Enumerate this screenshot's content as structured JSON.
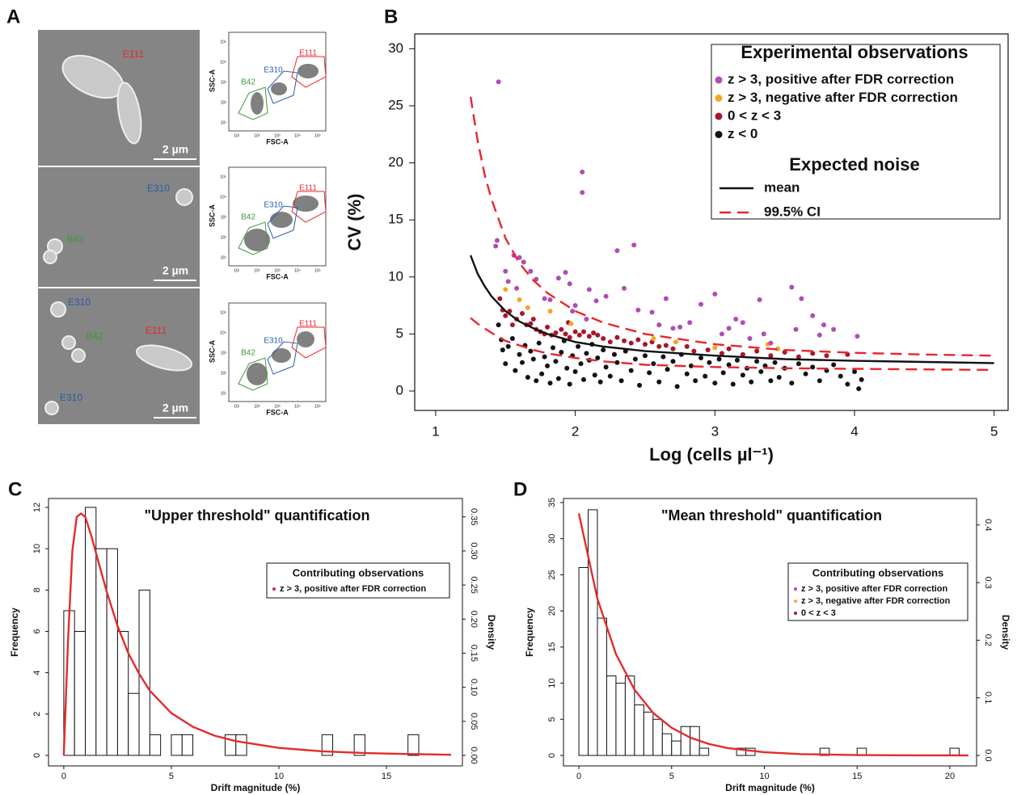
{
  "panel_a": {
    "label": "A",
    "micrographs": [
      {
        "labels": [
          {
            "text": "E111",
            "color": "#e8262b"
          }
        ],
        "scale_bar": "2 µm"
      },
      {
        "labels": [
          {
            "text": "E310",
            "color": "#2a5ca8"
          },
          {
            "text": "B42",
            "color": "#3a9a3a"
          }
        ],
        "scale_bar": "2 µm"
      },
      {
        "labels": [
          {
            "text": "E310",
            "color": "#2a5ca8"
          },
          {
            "text": "B42",
            "color": "#3a9a3a"
          },
          {
            "text": "E111",
            "color": "#e8262b"
          },
          {
            "text": "E310",
            "color": "#2a5ca8"
          }
        ],
        "scale_bar": "2 µm"
      }
    ],
    "flow_plots": [
      {
        "x_label": "FSC-A",
        "y_label": "SSC-A",
        "ticks": [
          "10¹",
          "10²",
          "10³",
          "10⁴",
          "10⁵"
        ],
        "gates": [
          {
            "text": "B42",
            "color": "#3a9a3a"
          },
          {
            "text": "E310",
            "color": "#2a5ca8"
          },
          {
            "text": "E111",
            "color": "#e8262b"
          }
        ]
      },
      {
        "x_label": "FSC-A",
        "y_label": "SSC-A",
        "ticks": [
          "10¹",
          "10²",
          "10³",
          "10⁴",
          "10⁵"
        ],
        "gates": [
          {
            "text": "B42",
            "color": "#3a9a3a"
          },
          {
            "text": "E310",
            "color": "#2a5ca8"
          },
          {
            "text": "E111",
            "color": "#e8262b"
          }
        ]
      },
      {
        "x_label": "FSC-A",
        "y_label": "SSC-A",
        "ticks": [
          "10¹",
          "10²",
          "10³",
          "10⁴",
          "10⁵"
        ],
        "gates": [
          {
            "text": "B42",
            "color": "#3a9a3a"
          },
          {
            "text": "E310",
            "color": "#2a5ca8"
          },
          {
            "text": "E111",
            "color": "#e8262b"
          }
        ]
      }
    ]
  },
  "chart_data": [
    {
      "type": "scatter",
      "panel_label": "B",
      "x_label": "Log (cells µl⁻¹)",
      "y_label": "CV (%)",
      "xlim": [
        0.85,
        5.1
      ],
      "ylim": [
        -1.7,
        31.3
      ],
      "xticks": [
        1,
        2,
        3,
        4,
        5
      ],
      "yticks": [
        0,
        5,
        10,
        15,
        20,
        25,
        30
      ],
      "grid": false,
      "legend": "top-right",
      "legend_title": "Experimental observations",
      "lines_title": "Expected noise",
      "series": [
        {
          "name": "z > 3, positive after FDR correction",
          "color": "#b04bb7",
          "x": [
            1.45,
            1.44,
            1.43,
            1.5,
            1.56,
            1.6,
            1.63,
            1.52,
            1.58,
            1.68,
            1.72,
            1.78,
            1.82,
            1.88,
            1.93,
            1.96,
            2.05,
            2.05,
            2.0,
            2.1,
            2.15,
            2.22,
            2.3,
            2.42,
            2.35,
            2.45,
            2.55,
            2.6,
            2.7,
            2.75,
            2.82,
            2.65,
            2.9,
            3.05,
            3.1,
            3.15,
            3.2,
            3.25,
            3.32,
            3.35,
            3.4,
            3.55,
            3.58,
            3.62,
            3.7,
            3.75,
            3.78,
            3.85,
            4.02,
            1.98,
            2.08,
            3.0
          ],
          "values": [
            27.1,
            13.2,
            12.7,
            10.5,
            11.9,
            11.7,
            11.3,
            9.6,
            9.0,
            10.5,
            9.8,
            8.1,
            8.0,
            9.9,
            10.4,
            9.4,
            19.2,
            17.4,
            7.5,
            8.9,
            7.9,
            8.3,
            12.3,
            12.8,
            9.0,
            7.1,
            6.9,
            5.8,
            5.5,
            5.6,
            6.0,
            8.1,
            7.6,
            5.0,
            5.5,
            6.3,
            6.0,
            4.6,
            8.0,
            5.0,
            4.2,
            9.1,
            5.4,
            8.1,
            6.6,
            4.9,
            5.8,
            5.4,
            4.8,
            7.0,
            6.3,
            8.5
          ]
        },
        {
          "name": "z > 3, negative after FDR correction",
          "color": "#f5a623",
          "x": [
            1.5,
            1.6,
            1.66,
            1.82,
            1.97,
            2.56,
            2.72,
            3.0,
            3.38,
            3.45
          ],
          "values": [
            8.9,
            8.0,
            7.3,
            7.0,
            5.9,
            4.6,
            4.3,
            3.8,
            4.1,
            3.7
          ]
        },
        {
          "name": "0 < z < 3",
          "color": "#a8162a",
          "x": [
            1.46,
            1.48,
            1.5,
            1.53,
            1.55,
            1.58,
            1.62,
            1.65,
            1.68,
            1.7,
            1.72,
            1.75,
            1.78,
            1.8,
            1.83,
            1.86,
            1.9,
            1.93,
            1.96,
            2.0,
            2.03,
            2.06,
            2.1,
            2.13,
            2.16,
            2.2,
            2.25,
            2.3,
            2.35,
            2.4,
            2.45,
            2.5,
            2.55,
            2.6,
            2.65,
            2.7,
            2.8,
            2.85,
            2.95,
            3.05,
            3.1,
            3.2,
            3.3,
            3.4,
            3.5,
            3.6,
            3.7,
            3.8,
            3.95,
            1.95
          ],
          "values": [
            8.1,
            7.1,
            6.6,
            7.0,
            5.8,
            6.3,
            6.8,
            5.8,
            5.9,
            6.3,
            5.4,
            5.2,
            5.0,
            5.6,
            4.9,
            5.1,
            5.4,
            5.0,
            4.7,
            5.2,
            4.9,
            5.2,
            4.8,
            5.1,
            4.9,
            4.6,
            4.3,
            4.7,
            4.4,
            4.2,
            4.5,
            4.1,
            4.3,
            3.9,
            4.0,
            3.7,
            3.9,
            3.5,
            3.6,
            3.3,
            3.7,
            3.2,
            3.5,
            3.1,
            3.4,
            3.0,
            3.3,
            3.1,
            3.2,
            6.0
          ]
        },
        {
          "name": "z < 0",
          "color": "#111111",
          "x": [
            1.45,
            1.47,
            1.48,
            1.5,
            1.52,
            1.55,
            1.57,
            1.6,
            1.62,
            1.64,
            1.66,
            1.68,
            1.7,
            1.72,
            1.74,
            1.76,
            1.78,
            1.8,
            1.82,
            1.84,
            1.86,
            1.88,
            1.9,
            1.92,
            1.94,
            1.96,
            1.98,
            2.0,
            2.02,
            2.04,
            2.06,
            2.08,
            2.1,
            2.12,
            2.14,
            2.16,
            2.18,
            2.2,
            2.22,
            2.25,
            2.28,
            2.3,
            2.33,
            2.36,
            2.4,
            2.43,
            2.46,
            2.5,
            2.53,
            2.56,
            2.6,
            2.63,
            2.66,
            2.7,
            2.73,
            2.76,
            2.8,
            2.83,
            2.86,
            2.9,
            2.93,
            2.96,
            3.0,
            3.03,
            3.06,
            3.1,
            3.13,
            3.16,
            3.2,
            3.23,
            3.26,
            3.3,
            3.33,
            3.36,
            3.4,
            3.43,
            3.46,
            3.5,
            3.55,
            3.6,
            3.65,
            3.7,
            3.75,
            3.8,
            3.85,
            3.9,
            3.95,
            4.0,
            4.03,
            4.05
          ],
          "values": [
            5.8,
            4.5,
            3.6,
            2.4,
            3.9,
            4.6,
            1.8,
            3.2,
            2.5,
            4.0,
            1.2,
            3.5,
            2.8,
            0.9,
            4.2,
            1.5,
            3.0,
            2.2,
            0.7,
            3.8,
            2.6,
            1.1,
            3.4,
            4.4,
            2.0,
            0.6,
            3.1,
            1.7,
            3.9,
            2.4,
            1.0,
            3.3,
            2.7,
            4.1,
            1.4,
            2.9,
            0.8,
            3.6,
            2.1,
            1.3,
            3.2,
            2.5,
            0.9,
            3.5,
            1.8,
            2.8,
            0.5,
            3.1,
            1.6,
            2.4,
            0.8,
            3.0,
            1.9,
            2.6,
            0.4,
            3.2,
            1.5,
            2.2,
            0.9,
            2.9,
            1.3,
            2.5,
            0.7,
            2.8,
            1.6,
            2.3,
            0.6,
            2.7,
            1.4,
            2.0,
            0.8,
            2.6,
            1.7,
            2.2,
            0.9,
            2.5,
            1.2,
            2.0,
            0.7,
            2.4,
            1.5,
            2.1,
            0.9,
            1.8,
            2.3,
            1.3,
            0.6,
            1.7,
            0.2,
            1.0
          ]
        }
      ],
      "lines": [
        {
          "name": "mean",
          "color": "#111111",
          "dashed": false,
          "x": [
            1.25,
            1.3,
            1.35,
            1.4,
            1.5,
            1.6,
            1.7,
            1.8,
            2.0,
            2.2,
            2.5,
            3.0,
            3.5,
            4.0,
            4.5,
            5.0
          ],
          "values": [
            11.9,
            10.3,
            9.2,
            8.3,
            7.0,
            6.1,
            5.5,
            5.0,
            4.3,
            3.9,
            3.5,
            3.1,
            2.8,
            2.65,
            2.55,
            2.45
          ]
        },
        {
          "name": "99.5% CI",
          "color": "#e8262b",
          "dashed": true,
          "x": [
            1.25,
            1.3,
            1.35,
            1.4,
            1.5,
            1.6,
            1.7,
            1.8,
            2.0,
            2.2,
            2.5,
            3.0,
            3.5,
            4.0,
            4.5,
            5.0
          ],
          "upper": [
            25.8,
            22,
            19,
            16.8,
            13.4,
            11.2,
            9.7,
            8.6,
            7.0,
            6.0,
            5.0,
            4.1,
            3.6,
            3.35,
            3.2,
            3.1
          ],
          "lower": [
            6.4,
            5.9,
            5.5,
            5.1,
            4.4,
            4.0,
            3.6,
            3.3,
            2.9,
            2.6,
            2.3,
            2.1,
            2.0,
            1.95,
            1.9,
            1.85
          ]
        }
      ]
    },
    {
      "type": "histogram",
      "panel_label": "C",
      "title": "\"Upper threshold\" quantification",
      "x_label": "Drift magnitude (%)",
      "y_label": "Frequency",
      "y2_label": "Density",
      "bins": [
        0,
        0.5,
        1,
        1.5,
        2,
        2.5,
        3,
        3.5,
        4,
        4.5,
        5,
        5.5,
        6,
        6.5,
        7,
        7.5,
        8,
        8.5,
        9,
        9.5,
        10,
        10.5,
        11,
        11.5,
        12,
        12.5,
        13,
        13.5,
        14,
        14.5,
        15,
        15.5,
        16,
        16.5
      ],
      "values": [
        7,
        6,
        12,
        10,
        10,
        6,
        3,
        8,
        1,
        0,
        1,
        1,
        0,
        0,
        0,
        1,
        1,
        0,
        0,
        0,
        0,
        0,
        0,
        0,
        1,
        0,
        0,
        1,
        0,
        0,
        0,
        0,
        1
      ],
      "bar_color": "#ffffff",
      "xlim": [
        -0.71,
        18.53
      ],
      "ylim": [
        -0.51,
        12.43
      ],
      "y2lim": [
        -0.0154,
        0.377
      ],
      "xticks": [
        0,
        5,
        10,
        15
      ],
      "yticks": [
        0,
        2,
        4,
        6,
        8,
        10,
        12
      ],
      "y2ticks": [
        {
          "value": 0,
          "label": "0.00"
        },
        0.05,
        {
          "value": 0.1,
          "label": "0.10"
        },
        0.15,
        {
          "value": 0.2,
          "label": "0.20"
        },
        0.25,
        {
          "value": 0.3,
          "label": "0.30"
        },
        0.35
      ],
      "series": [
        {
          "color": "#e32b2b",
          "axis": "y2",
          "x": [
            0,
            0.2,
            0.4,
            0.6,
            0.8,
            1,
            1.3,
            1.6,
            2,
            2.5,
            3,
            3.5,
            4,
            5,
            6,
            7,
            8,
            10,
            12,
            14,
            16,
            18
          ],
          "values": [
            0,
            0.17,
            0.3,
            0.35,
            0.355,
            0.35,
            0.32,
            0.285,
            0.24,
            0.19,
            0.15,
            0.12,
            0.095,
            0.062,
            0.042,
            0.029,
            0.021,
            0.011,
            0.006,
            0.0035,
            0.002,
            0.001
          ]
        }
      ],
      "legend_title": "Contributing observations",
      "legend_entries": [
        {
          "label": "z > 3, positive after FDR correction",
          "color": "#c8304a"
        }
      ]
    },
    {
      "type": "histogram",
      "panel_label": "D",
      "title": "\"Mean threshold\" quantification",
      "x_label": "Drift magnitude (%)",
      "y_label": "Frequency",
      "y2_label": "Density",
      "bins": [
        0,
        0.5,
        1,
        1.5,
        2,
        2.5,
        3,
        3.5,
        4,
        4.5,
        5,
        5.5,
        6,
        6.5,
        7,
        7.5,
        8,
        8.5,
        9,
        9.5,
        10,
        10.5,
        11,
        11.5,
        12,
        12.5,
        13,
        13.5,
        14,
        14.5,
        15,
        15.5,
        16,
        16.5,
        17,
        17.5,
        18,
        18.5,
        19,
        19.5,
        20,
        20.5
      ],
      "values": [
        26,
        34,
        19,
        11,
        10,
        11,
        7,
        6,
        5,
        3,
        2,
        4,
        4,
        1,
        0,
        0,
        0,
        1,
        1,
        0,
        0,
        0,
        0,
        0,
        0,
        0,
        1,
        0,
        0,
        0,
        1,
        0,
        0,
        0,
        0,
        0,
        0,
        0,
        0,
        0,
        1
      ],
      "bar_color": "#ffffff",
      "xlim": [
        -0.83,
        21.44
      ],
      "ylim": [
        -1.45,
        35.56
      ],
      "y2lim": [
        -0.0182,
        0.446
      ],
      "xticks": [
        0,
        5,
        10,
        15,
        20
      ],
      "yticks": [
        0,
        5,
        10,
        15,
        20,
        25,
        30,
        35
      ],
      "y2ticks": [
        {
          "value": 0,
          "label": "0.0"
        },
        0.1,
        0.2,
        0.3,
        0.4
      ],
      "series": [
        {
          "color": "#e32b2b",
          "axis": "y2",
          "x": [
            0,
            1,
            2,
            3,
            4,
            5,
            6,
            7,
            8,
            10,
            12,
            15,
            18,
            21
          ],
          "values": [
            0.42,
            0.272,
            0.176,
            0.114,
            0.074,
            0.048,
            0.031,
            0.02,
            0.013,
            0.0055,
            0.0023,
            0.0006,
            0.0002,
            0.0001
          ]
        }
      ],
      "legend_title": "Contributing observations",
      "legend_entries": [
        {
          "label": "z > 3, positive after FDR correction",
          "color": "#b04bb7"
        },
        {
          "label": "z > 3, negative after FDR correction",
          "color": "#f5a623"
        },
        {
          "label": "0 < z < 3",
          "color": "#a8162a"
        }
      ]
    }
  ]
}
